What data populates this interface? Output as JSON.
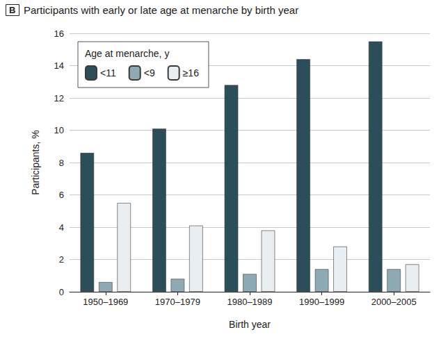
{
  "chart_data": {
    "type": "bar",
    "panel_label": "B",
    "title": "Participants with early or late age at menarche by birth year",
    "x_label": "Birth year",
    "y_label": "Participants, %",
    "legend_title": "Age at menarche, y",
    "legend": "upper left",
    "grid": true,
    "categories": [
      "1950–1969",
      "1970–1979",
      "1980–1989",
      "1990–1999",
      "2000–2005"
    ],
    "series": [
      {
        "name": "<11",
        "color": "#2c4e5a",
        "values": [
          8.6,
          10.1,
          12.8,
          14.4,
          15.5
        ]
      },
      {
        "name": "<9",
        "color": "#8eaab5",
        "values": [
          0.6,
          0.8,
          1.1,
          1.4,
          1.4
        ]
      },
      {
        "name": "≥16",
        "color": "#e8eef1",
        "values": [
          5.5,
          4.1,
          3.8,
          2.8,
          1.7
        ]
      }
    ],
    "ylim": [
      0,
      16
    ],
    "yticks": [
      0,
      2,
      4,
      6,
      8,
      10,
      12,
      14,
      16
    ]
  }
}
